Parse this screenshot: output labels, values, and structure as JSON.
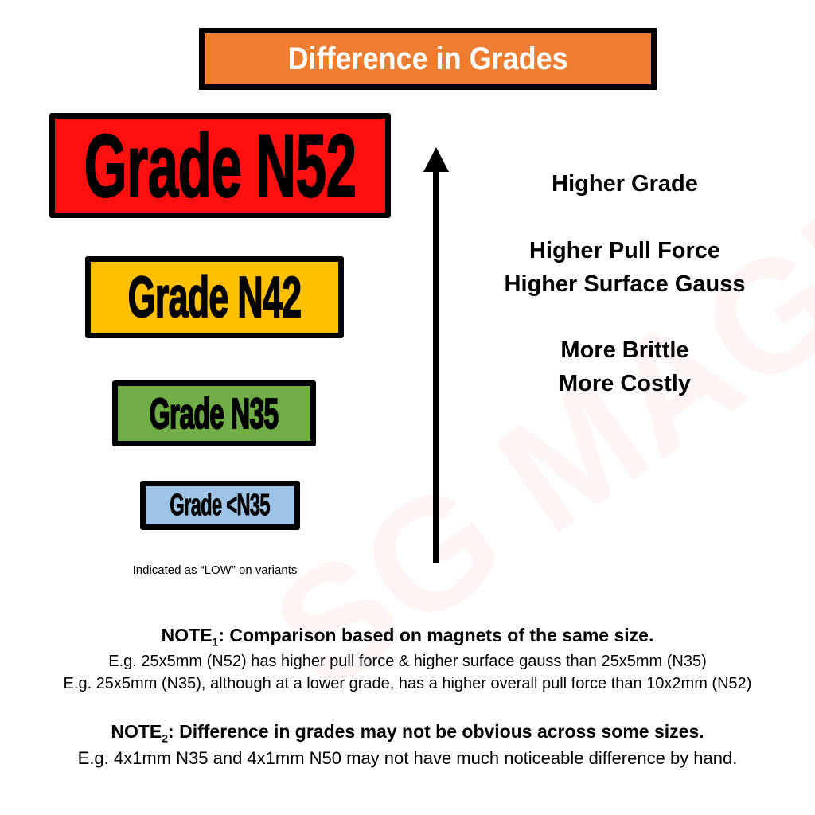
{
  "title": "Difference in Grades",
  "grades": [
    {
      "label": "Grade N52",
      "color": "#ff0f0f"
    },
    {
      "label": "Grade N42",
      "color": "#ffc000"
    },
    {
      "label": "Grade N35",
      "color": "#70ad47"
    },
    {
      "label": "Grade <N35",
      "color": "#9dc3e6"
    }
  ],
  "low_note": "Indicated as “LOW” on variants",
  "arrow": {
    "direction": "up"
  },
  "properties": {
    "line1": "Higher Grade",
    "line2": "Higher Pull Force",
    "line3": "Higher Surface Gauss",
    "line4": "More Brittle",
    "line5": "More Costly"
  },
  "watermark": "SG MAGNETICS www.sgmagnetics.com",
  "note1": {
    "heading": "NOTE",
    "num": "1",
    "heading_rest": ": Comparison based on magnets of the same size.",
    "ex1": "E.g. 25x5mm (N52) has higher pull force & higher surface gauss than 25x5mm (N35)",
    "ex2": "E.g. 25x5mm (N35), although at a lower grade, has a higher overall pull force than 10x2mm (N52)"
  },
  "note2": {
    "heading": "NOTE",
    "num": "2",
    "heading_rest": ": Difference in grades may not be obvious across some sizes.",
    "ex1": "E.g. 4x1mm N35 and 4x1mm N50 may not have much noticeable difference by hand."
  }
}
